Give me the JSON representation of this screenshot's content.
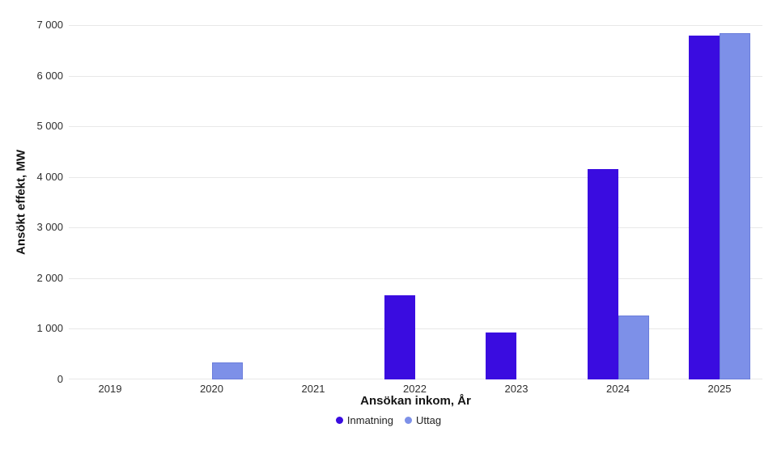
{
  "colors": {
    "background": "#ffffff",
    "gridline": "#e8e8e8",
    "tick_text": "#2e2e2e",
    "title_text": "#141414",
    "inmatning": "#3a0ce0",
    "uttag": "#7d90e8",
    "uttag_border": "#6b7ddb"
  },
  "chart_data": {
    "type": "bar",
    "categories": [
      "2019",
      "2020",
      "2021",
      "2022",
      "2023",
      "2024",
      "2025"
    ],
    "series": [
      {
        "name": "Inmatning",
        "color": "#3a0ce0",
        "border_color": "",
        "values": [
          0,
          0,
          0,
          1670,
          920,
          4150,
          6800
        ]
      },
      {
        "name": "Uttag",
        "color": "#7d90e8",
        "border_color": "#6b7ddb",
        "values": [
          0,
          340,
          0,
          0,
          0,
          1270,
          6840
        ]
      }
    ],
    "xlabel": "Ansökan inkom, År",
    "ylabel": "Ansökt effekt, MW",
    "ylim": [
      0,
      7000
    ],
    "ytick_step": 1000,
    "yticks": [
      0,
      1000,
      2000,
      3000,
      4000,
      5000,
      6000,
      7000
    ],
    "ytick_labels": [
      "0",
      "1 000",
      "2 000",
      "3 000",
      "4 000",
      "5 000",
      "6 000",
      "7 000"
    ],
    "grid": true,
    "legend_position": "bottom-center"
  }
}
